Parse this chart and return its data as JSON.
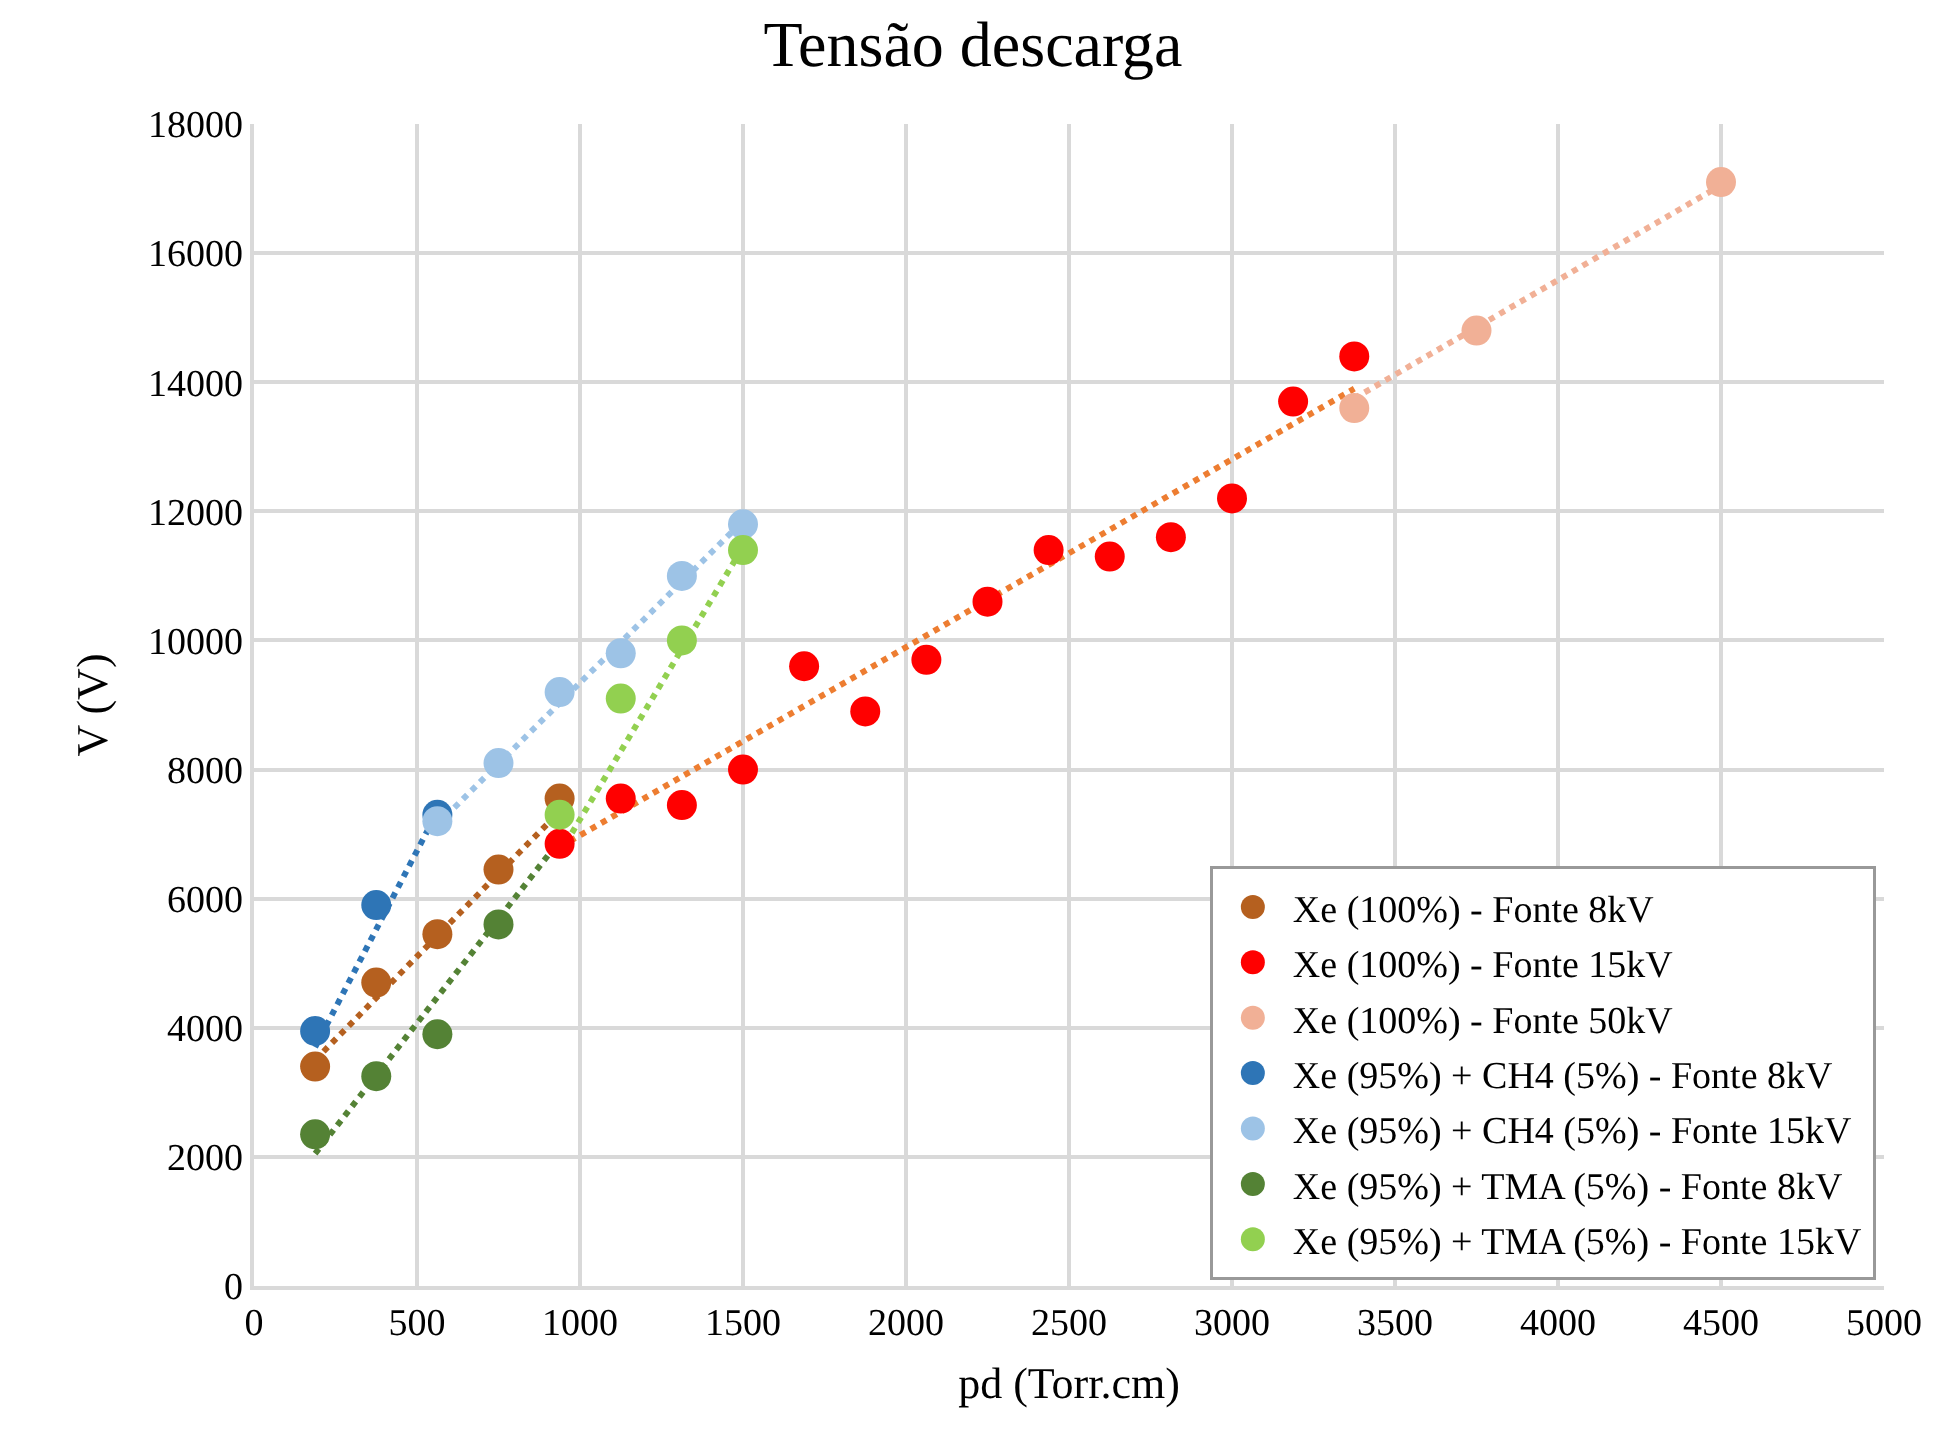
{
  "chart_data": {
    "type": "scatter",
    "title": "Tensão descarga",
    "xlabel": "pd (Torr.cm)",
    "ylabel": "V (V)",
    "xlim": [
      0,
      5000
    ],
    "xticks": [
      0,
      500,
      1000,
      1500,
      2000,
      2500,
      3000,
      3500,
      4000,
      4500,
      5000
    ],
    "ylim": [
      0,
      18000
    ],
    "yticks": [
      0,
      2000,
      4000,
      6000,
      8000,
      10000,
      12000,
      14000,
      16000,
      18000
    ],
    "grid": true,
    "legend": "bottom right",
    "marker": "circle",
    "series": [
      {
        "name": "Xe (100%) - Fonte 8kV",
        "color": "#b5601f",
        "x": [
          187.5,
          375,
          562.5,
          750,
          937.5
        ],
        "values": [
          3400,
          4700,
          5450,
          6450,
          7550
        ]
      },
      {
        "name": "Xe (100%) - Fonte 15kV",
        "color": "#ff0000",
        "x": [
          937.5,
          1125,
          1312.5,
          1500,
          1687.5,
          1875,
          2062.5,
          2250,
          2437.5,
          2625,
          2812.5,
          3000,
          3187.5,
          3375
        ],
        "values": [
          6850,
          7550,
          7450,
          8000,
          9600,
          8900,
          9700,
          10600,
          11400,
          11300,
          11600,
          12200,
          13700,
          14400
        ]
      },
      {
        "name": "Xe (100%) - Fonte 50kV",
        "color": "#f1b096",
        "x": [
          3375,
          3750,
          4500
        ],
        "values": [
          13600,
          14800,
          17100
        ]
      },
      {
        "name": "Xe (95%) + CH4 (5%) - Fonte 8kV",
        "color": "#2e75b6",
        "x": [
          187.5,
          375,
          562.5
        ],
        "values": [
          3950,
          5900,
          7300
        ]
      },
      {
        "name": "Xe (95%) + CH4 (5%) - Fonte 15kV",
        "color": "#9dc3e6",
        "x": [
          562.5,
          750,
          937.5,
          1125,
          1312.5,
          1500
        ],
        "values": [
          7200,
          8100,
          9200,
          9800,
          11000,
          11800
        ]
      },
      {
        "name": "Xe (95%) + TMA (5%) - Fonte 8kV",
        "color": "#548235",
        "x": [
          187.5,
          375,
          562.5,
          750
        ],
        "values": [
          2350,
          3250,
          3900,
          5600
        ]
      },
      {
        "name": "Xe (95%) + TMA (5%) - Fonte 15kV",
        "color": "#92d050",
        "x": [
          937.5,
          1125,
          1312.5,
          1500
        ],
        "values": [
          7300,
          9100,
          10000,
          11400
        ]
      },
      {
        "type": "line",
        "line_style": "dotted",
        "marker": "none",
        "color": "#b5601f",
        "x": [
          187.5,
          937.5
        ],
        "values": [
          3500,
          7350
        ]
      },
      {
        "type": "line",
        "line_style": "dotted",
        "marker": "none",
        "color": "#ed7d31",
        "x": [
          937.5,
          3375
        ],
        "values": [
          6800,
          13900
        ]
      },
      {
        "type": "line",
        "line_style": "dotted",
        "marker": "none",
        "color": "#f1b096",
        "x": [
          3375,
          4500
        ],
        "values": [
          13750,
          17050
        ]
      },
      {
        "type": "line",
        "line_style": "dotted",
        "marker": "none",
        "color": "#2e75b6",
        "x": [
          187.5,
          562.5
        ],
        "values": [
          3700,
          7350
        ]
      },
      {
        "type": "line",
        "line_style": "dotted",
        "marker": "none",
        "color": "#9dc3e6",
        "x": [
          562.5,
          1500
        ],
        "values": [
          7150,
          11850
        ]
      },
      {
        "type": "line",
        "line_style": "dotted",
        "marker": "none",
        "color": "#548235",
        "x": [
          187.5,
          937.5
        ],
        "values": [
          2050,
          6900
        ]
      },
      {
        "type": "line",
        "line_style": "dotted",
        "marker": "none",
        "color": "#92d050",
        "x": [
          937.5,
          1500
        ],
        "values": [
          6700,
          11450
        ]
      }
    ]
  }
}
